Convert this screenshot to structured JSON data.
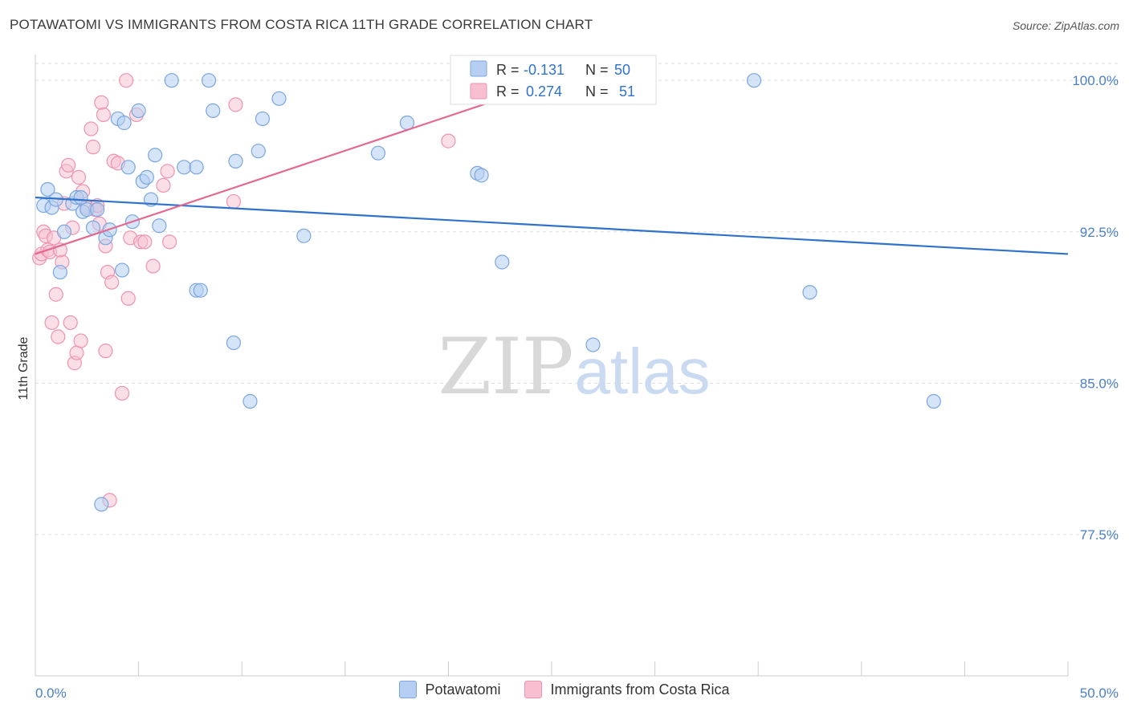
{
  "title": "POTAWATOMI VS IMMIGRANTS FROM COSTA RICA 11TH GRADE CORRELATION CHART",
  "source": "Source: ZipAtlas.com",
  "watermark": {
    "zip": "ZIP",
    "atlas": "atlas"
  },
  "colors": {
    "blue_fill": "#b5cef2",
    "blue_stroke": "#7aa6e0",
    "blue_line": "#2f72cc",
    "pink_fill": "#f7bfd0",
    "pink_stroke": "#ee93b0",
    "pink_line": "#e3698f",
    "axis_label": "#4a7fc8",
    "grid": "#dddddd"
  },
  "stats": [
    {
      "r_label": "R =",
      "r_value": "-0.131",
      "n_label": "N =",
      "n_value": "50"
    },
    {
      "r_label": "R =",
      "r_value": "0.274",
      "n_label": "N =",
      "n_value": "51"
    }
  ],
  "legend": [
    {
      "label": "Potawatomi"
    },
    {
      "label": "Immigrants from Costa Rica"
    }
  ],
  "chart_data": {
    "type": "scatter",
    "title": "POTAWATOMI VS IMMIGRANTS FROM COSTA RICA 11TH GRADE CORRELATION CHART",
    "xlabel": "",
    "ylabel": "11th Grade",
    "xlim": [
      0,
      50
    ],
    "ylim": [
      70.5,
      101.2
    ],
    "x_tick_labels": [
      "0.0%",
      "50.0%"
    ],
    "y_ticks": [
      77.5,
      85.0,
      92.5,
      100.0
    ],
    "y_tick_labels": [
      "77.5%",
      "85.0%",
      "92.5%",
      "100.0%"
    ],
    "series": [
      {
        "name": "Potawatomi",
        "trend": {
          "x0": 0,
          "y0": 94.2,
          "x1": 50,
          "y1": 91.4
        },
        "points": [
          [
            0.4,
            93.8
          ],
          [
            0.6,
            94.6
          ],
          [
            0.8,
            93.7
          ],
          [
            1.0,
            94.1
          ],
          [
            1.2,
            90.5
          ],
          [
            1.4,
            92.5
          ],
          [
            1.8,
            93.9
          ],
          [
            2.0,
            94.2
          ],
          [
            2.2,
            94.2
          ],
          [
            2.3,
            93.5
          ],
          [
            2.5,
            93.6
          ],
          [
            2.8,
            92.7
          ],
          [
            3.0,
            93.6
          ],
          [
            3.4,
            92.2
          ],
          [
            3.6,
            92.6
          ],
          [
            4.0,
            98.1
          ],
          [
            4.2,
            90.6
          ],
          [
            4.3,
            97.9
          ],
          [
            4.5,
            95.7
          ],
          [
            4.7,
            93.0
          ],
          [
            5.0,
            98.5
          ],
          [
            5.2,
            95.0
          ],
          [
            5.4,
            95.2
          ],
          [
            5.6,
            94.1
          ],
          [
            5.8,
            96.3
          ],
          [
            6.0,
            92.8
          ],
          [
            6.6,
            100.0
          ],
          [
            7.2,
            95.7
          ],
          [
            7.8,
            95.7
          ],
          [
            7.8,
            89.6
          ],
          [
            8.4,
            100.0
          ],
          [
            8.6,
            98.5
          ],
          [
            9.6,
            87.0
          ],
          [
            9.7,
            96.0
          ],
          [
            10.4,
            84.1
          ],
          [
            10.8,
            96.5
          ],
          [
            11.0,
            98.1
          ],
          [
            11.8,
            99.1
          ],
          [
            13.0,
            92.3
          ],
          [
            16.6,
            96.4
          ],
          [
            18.0,
            97.9
          ],
          [
            21.4,
            95.4
          ],
          [
            21.6,
            95.3
          ],
          [
            22.6,
            91.0
          ],
          [
            27.0,
            86.9
          ],
          [
            34.8,
            100.0
          ],
          [
            37.5,
            89.5
          ],
          [
            43.5,
            84.1
          ],
          [
            3.2,
            79.0
          ],
          [
            8.0,
            89.6
          ]
        ]
      },
      {
        "name": "Immigrants from Costa Rica",
        "trend": {
          "x0": 0,
          "y0": 91.4,
          "x1": 25.2,
          "y1": 100.0
        },
        "points": [
          [
            0.2,
            91.2
          ],
          [
            0.3,
            91.4
          ],
          [
            0.4,
            92.5
          ],
          [
            0.5,
            92.3
          ],
          [
            0.6,
            91.6
          ],
          [
            0.7,
            91.5
          ],
          [
            0.8,
            88.0
          ],
          [
            0.9,
            92.2
          ],
          [
            1.0,
            89.4
          ],
          [
            1.1,
            87.3
          ],
          [
            1.3,
            91.0
          ],
          [
            1.4,
            93.9
          ],
          [
            1.5,
            95.5
          ],
          [
            1.6,
            95.8
          ],
          [
            1.7,
            88.0
          ],
          [
            1.8,
            92.7
          ],
          [
            1.9,
            86.0
          ],
          [
            2.0,
            86.5
          ],
          [
            2.1,
            95.2
          ],
          [
            2.3,
            94.5
          ],
          [
            2.5,
            93.7
          ],
          [
            2.7,
            97.6
          ],
          [
            2.8,
            96.7
          ],
          [
            2.9,
            93.6
          ],
          [
            3.0,
            93.8
          ],
          [
            3.1,
            92.9
          ],
          [
            3.2,
            98.9
          ],
          [
            3.3,
            98.3
          ],
          [
            3.4,
            86.6
          ],
          [
            3.5,
            90.5
          ],
          [
            3.6,
            79.2
          ],
          [
            3.7,
            90.0
          ],
          [
            3.8,
            96.0
          ],
          [
            4.0,
            95.9
          ],
          [
            4.2,
            84.5
          ],
          [
            4.4,
            100.0
          ],
          [
            4.5,
            89.2
          ],
          [
            4.6,
            92.2
          ],
          [
            4.9,
            98.3
          ],
          [
            5.1,
            92.0
          ],
          [
            5.3,
            92.0
          ],
          [
            5.7,
            90.8
          ],
          [
            6.2,
            94.8
          ],
          [
            6.4,
            95.5
          ],
          [
            6.5,
            92.0
          ],
          [
            9.6,
            94.0
          ],
          [
            9.7,
            98.8
          ],
          [
            3.4,
            91.8
          ],
          [
            20.0,
            97.0
          ],
          [
            2.2,
            87.1
          ],
          [
            1.2,
            91.6
          ]
        ]
      }
    ]
  }
}
